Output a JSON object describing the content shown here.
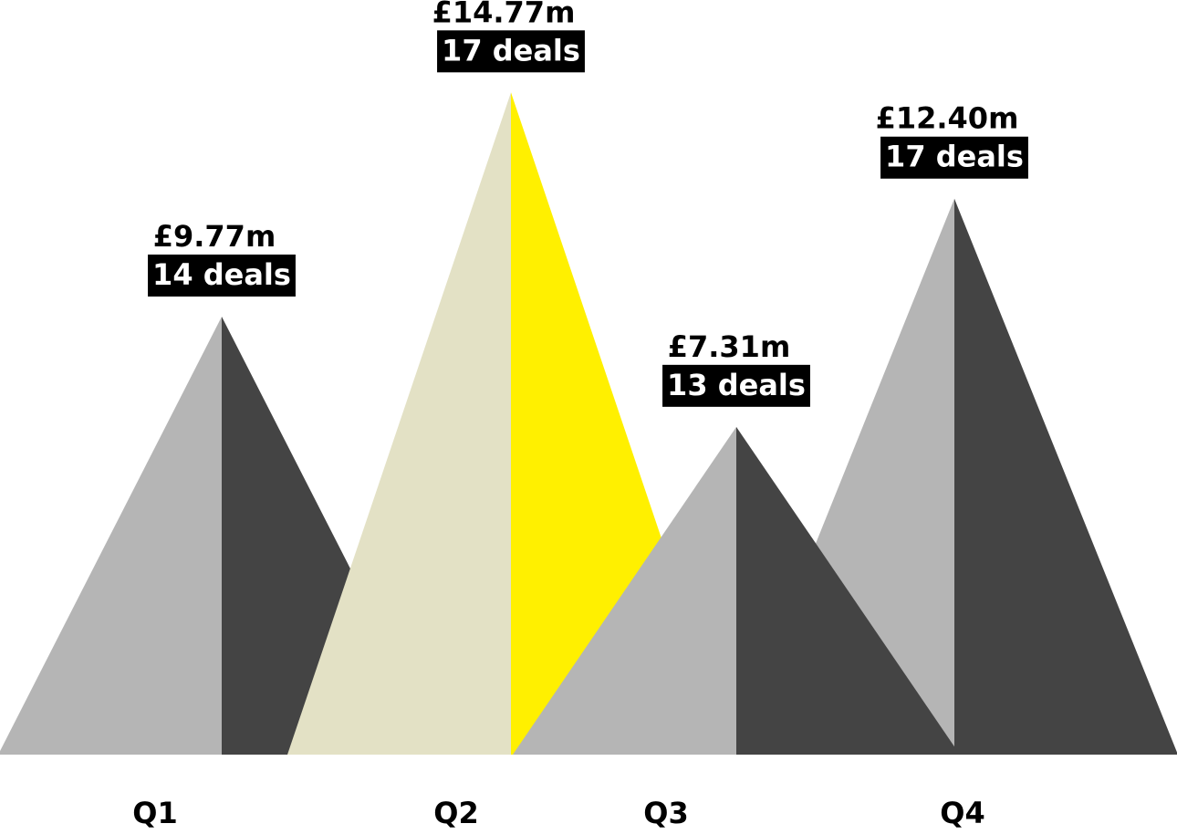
{
  "chart_data": {
    "type": "pyramid",
    "categories": [
      "Q1",
      "Q2",
      "Q3",
      "Q4"
    ],
    "values": [
      9.77,
      14.77,
      7.31,
      12.4
    ],
    "value_labels": [
      "£9.77m",
      "£14.77m",
      "£7.31m",
      "£12.40m"
    ],
    "deals": [
      14,
      17,
      13,
      17
    ],
    "deals_labels": [
      "14 deals",
      "17 deals",
      "13 deals",
      "17 deals"
    ],
    "left_colors": [
      "#b5b5b5",
      "#e3e1c5",
      "#b5b5b5",
      "#b5b5b5"
    ],
    "right_colors": [
      "#444444",
      "#fff000",
      "#444444",
      "#444444"
    ],
    "ylim": [
      0,
      15
    ]
  }
}
